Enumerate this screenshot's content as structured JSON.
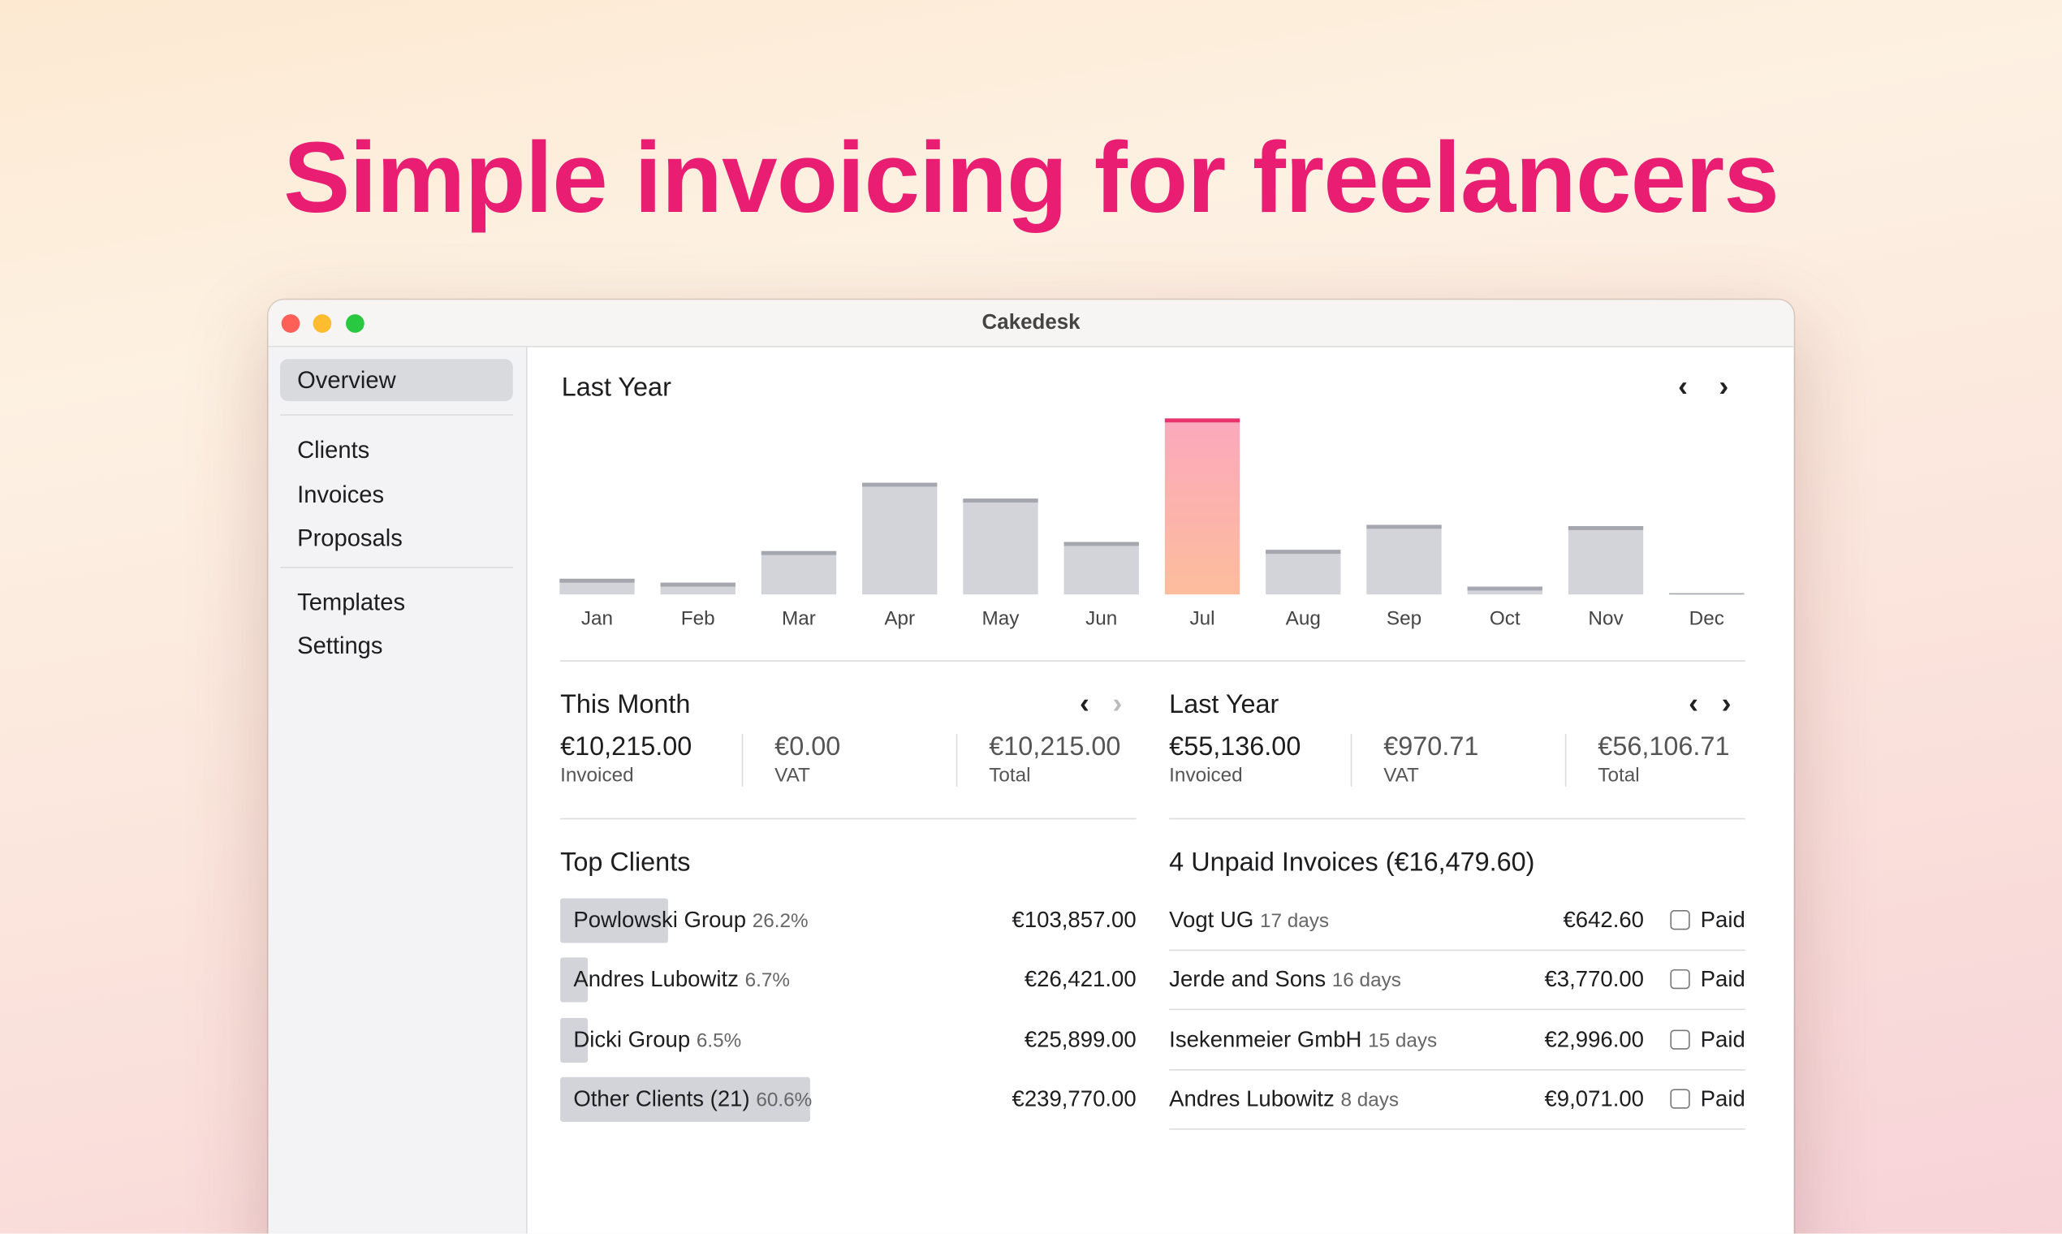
{
  "hero": {
    "title": "Simple invoicing for freelancers"
  },
  "window": {
    "title": "Cakedesk"
  },
  "sidebar": {
    "sections": [
      [
        "Overview"
      ],
      [
        "Clients",
        "Invoices",
        "Proposals"
      ],
      [
        "Templates",
        "Settings"
      ]
    ],
    "selected": [
      0,
      0
    ]
  },
  "chart_data": {
    "type": "bar",
    "title": "Last Year",
    "categories": [
      "Jan",
      "Feb",
      "Mar",
      "Apr",
      "May",
      "Jun",
      "Jul",
      "Aug",
      "Sep",
      "Oct",
      "Nov",
      "Dec"
    ],
    "values": [
      1240,
      930,
      3420,
      8810,
      7560,
      4140,
      13880,
      3520,
      5490,
      620,
      5390,
      100
    ],
    "colors": [
      "#d2d4d9",
      "#d2d4d9",
      "#d2d4d9",
      "#d2d4d9",
      "#d2d4d9",
      "#d2d4d9",
      "#f9a9b9",
      "#d2d4d9",
      "#d2d4d9",
      "#d2d4d9",
      "#d2d4d9",
      "#d2d4d9"
    ],
    "cap_colors": [
      "#a4a8ae",
      "#a4a8ae",
      "#a4a8ae",
      "#a4a8ae",
      "#a4a8ae",
      "#a4a8ae",
      "#e8336f",
      "#a4a8ae",
      "#a4a8ae",
      "#a4a8ae",
      "#a4a8ae",
      "#a4a8ae"
    ],
    "ylim": [
      0,
      14000
    ]
  },
  "this_month": {
    "title": "This Month",
    "stats": [
      {
        "value": "€10,215.00",
        "label": "Invoiced"
      },
      {
        "value": "€0.00",
        "label": "VAT"
      },
      {
        "value": "€10,215.00",
        "label": "Total"
      }
    ]
  },
  "last_year": {
    "title": "Last Year",
    "stats": [
      {
        "value": "€55,136.00",
        "label": "Invoiced"
      },
      {
        "value": "€970.71",
        "label": "VAT"
      },
      {
        "value": "€56,106.71",
        "label": "Total"
      }
    ]
  },
  "top_clients": {
    "title": "Top Clients",
    "xlim": [
      0,
      552700
    ],
    "rows": [
      {
        "name": "Powlowski Group",
        "share": "26.2%",
        "amount": "€103,857.00",
        "amount_value": 103857
      },
      {
        "name": "Andres Lubowitz",
        "share": "6.7%",
        "amount": "€26,421.00",
        "amount_value": 26421
      },
      {
        "name": "Dicki Group",
        "share": "6.5%",
        "amount": "€25,899.00",
        "amount_value": 25899
      },
      {
        "name": "Other Clients (21)",
        "share": "60.6%",
        "amount": "€239,770.00",
        "amount_value": 239770
      }
    ]
  },
  "unpaid": {
    "title": "4 Unpaid Invoices (€16,479.60)",
    "rows": [
      {
        "name": "Vogt UG",
        "age": "17 days",
        "amount": "€642.60",
        "action": "Paid"
      },
      {
        "name": "Jerde and Sons",
        "age": "16 days",
        "amount": "€3,770.00",
        "action": "Paid"
      },
      {
        "name": "Isekenmeier GmbH",
        "age": "15 days",
        "amount": "€2,996.00",
        "action": "Paid"
      },
      {
        "name": "Andres Lubowitz",
        "age": "8 days",
        "amount": "€9,071.00",
        "action": "Paid"
      }
    ]
  }
}
